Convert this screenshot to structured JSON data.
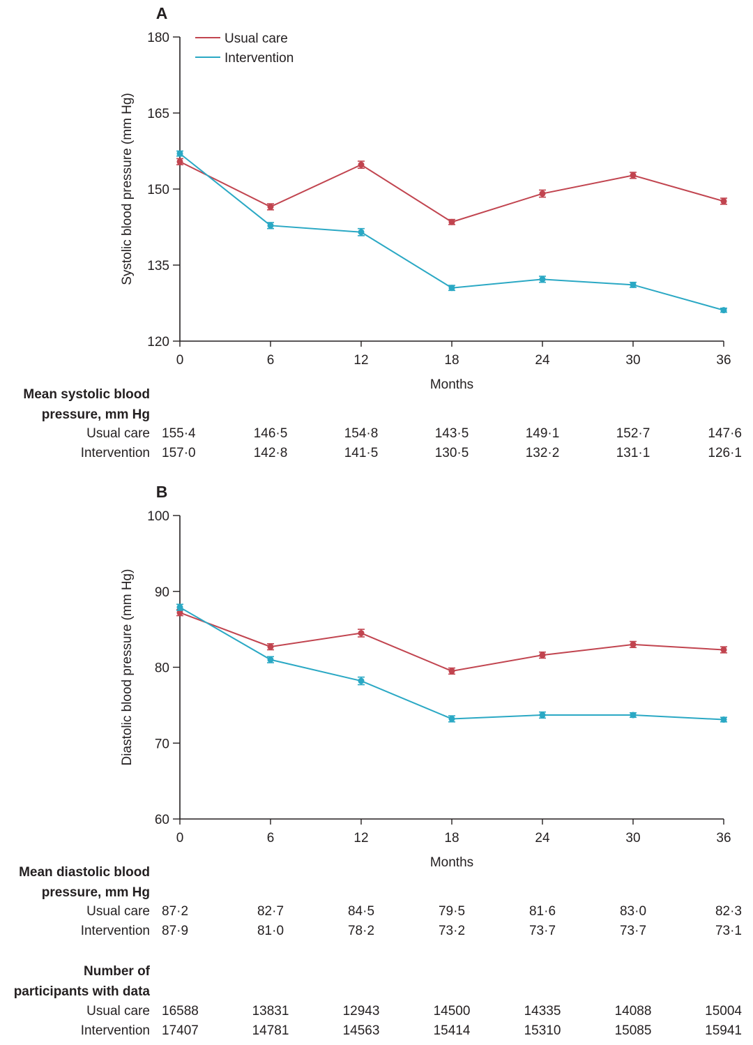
{
  "colors": {
    "usual_care": "#c1444f",
    "intervention": "#2aa8c4",
    "axis": "#231f20"
  },
  "chart_data": [
    {
      "type": "line",
      "panel_label": "A",
      "xlabel": "Months",
      "ylabel": "Systolic blood pressure (mm Hg)",
      "x": [
        0,
        6,
        12,
        18,
        24,
        30,
        36
      ],
      "x_tick_labels": [
        "0",
        "6",
        "12",
        "18",
        "24",
        "30",
        "36"
      ],
      "ylim": [
        120,
        180
      ],
      "y_ticks": [
        120,
        135,
        150,
        165,
        180
      ],
      "y_tick_labels": [
        "120",
        "135",
        "150",
        "165",
        "180"
      ],
      "legend_position": "top-left",
      "grid": false,
      "series": [
        {
          "name": "Usual care",
          "color_key": "usual_care",
          "values": [
            155.4,
            146.5,
            154.8,
            143.5,
            149.1,
            152.7,
            147.6
          ],
          "error": [
            0.6,
            0.6,
            0.7,
            0.5,
            0.7,
            0.6,
            0.6
          ]
        },
        {
          "name": "Intervention",
          "color_key": "intervention",
          "values": [
            157.0,
            142.8,
            141.5,
            130.5,
            132.2,
            131.1,
            126.1
          ],
          "error": [
            0.5,
            0.6,
            0.7,
            0.5,
            0.6,
            0.5,
            0.4
          ]
        }
      ]
    },
    {
      "type": "line",
      "panel_label": "B",
      "xlabel": "Months",
      "ylabel": "Diastolic blood pressure (mm Hg)",
      "x": [
        0,
        6,
        12,
        18,
        24,
        30,
        36
      ],
      "x_tick_labels": [
        "0",
        "6",
        "12",
        "18",
        "24",
        "30",
        "36"
      ],
      "ylim": [
        60,
        100
      ],
      "y_ticks": [
        60,
        70,
        80,
        90,
        100
      ],
      "y_tick_labels": [
        "60",
        "70",
        "80",
        "90",
        "100"
      ],
      "grid": false,
      "series": [
        {
          "name": "Usual care",
          "color_key": "usual_care",
          "values": [
            87.2,
            82.7,
            84.5,
            79.5,
            81.6,
            83.0,
            82.3
          ],
          "error": [
            0.4,
            0.4,
            0.5,
            0.4,
            0.4,
            0.4,
            0.4
          ]
        },
        {
          "name": "Intervention",
          "color_key": "intervention",
          "values": [
            87.9,
            81.0,
            78.2,
            73.2,
            73.7,
            73.7,
            73.1
          ],
          "error": [
            0.4,
            0.4,
            0.5,
            0.4,
            0.4,
            0.3,
            0.3
          ]
        }
      ]
    }
  ],
  "tables": {
    "systolic": {
      "title_line1": "Mean systolic blood",
      "title_line2": "pressure, mm Hg",
      "rows": [
        {
          "label": "Usual care",
          "values": [
            "155·4",
            "146·5",
            "154·8",
            "143·5",
            "149·1",
            "152·7",
            "147·6"
          ]
        },
        {
          "label": "Intervention",
          "values": [
            "157·0",
            "142·8",
            "141·5",
            "130·5",
            "132·2",
            "131·1",
            "126·1"
          ]
        }
      ]
    },
    "diastolic": {
      "title_line1": "Mean diastolic blood",
      "title_line2": "pressure, mm Hg",
      "rows": [
        {
          "label": "Usual care",
          "values": [
            "87·2",
            "82·7",
            "84·5",
            "79·5",
            "81·6",
            "83·0",
            "82·3"
          ]
        },
        {
          "label": "Intervention",
          "values": [
            "87·9",
            "81·0",
            "78·2",
            "73·2",
            "73·7",
            "73·7",
            "73·1"
          ]
        }
      ]
    },
    "participants": {
      "title_line1": "Number of",
      "title_line2": "participants with data",
      "rows": [
        {
          "label": "Usual care",
          "values": [
            "16588",
            "13831",
            "12943",
            "14500",
            "14335",
            "14088",
            "15004"
          ]
        },
        {
          "label": "Intervention",
          "values": [
            "17407",
            "14781",
            "14563",
            "15414",
            "15310",
            "15085",
            "15941"
          ]
        }
      ]
    }
  }
}
